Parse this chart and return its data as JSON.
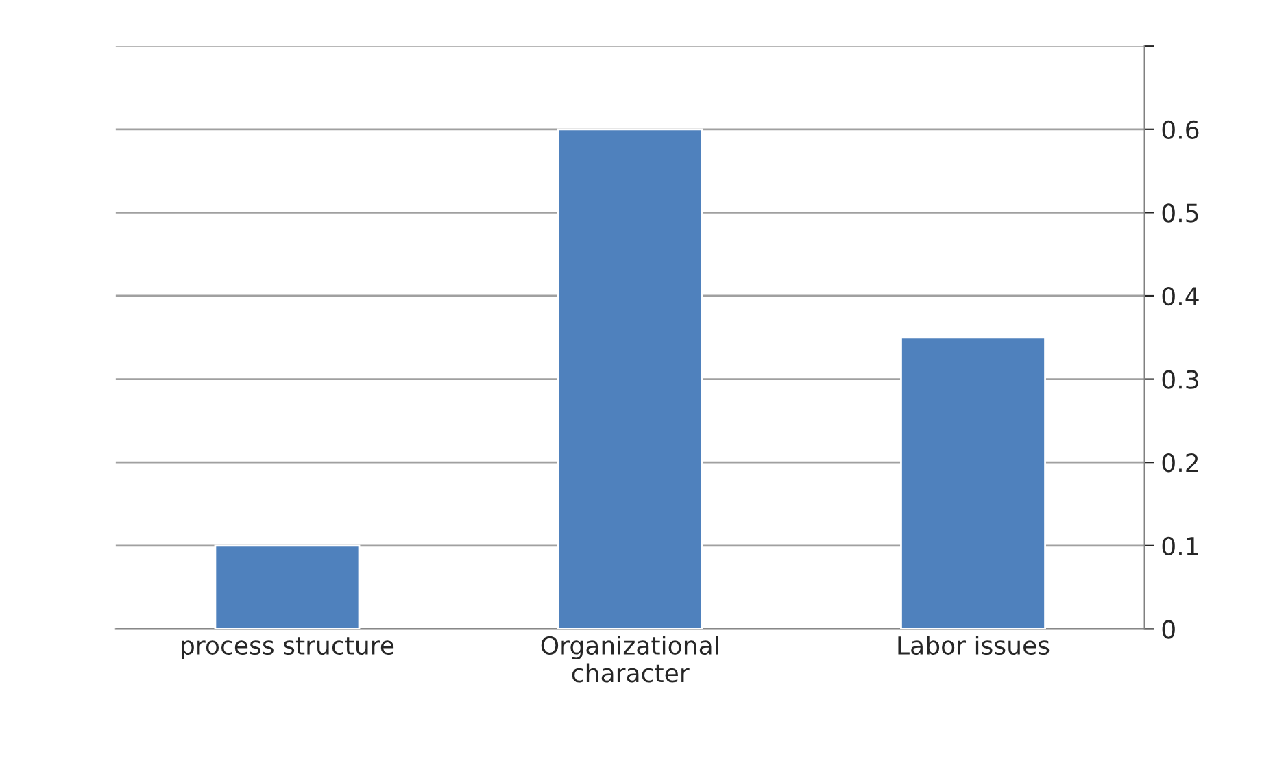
{
  "chart_data": {
    "type": "bar",
    "categories": [
      "process structure",
      "Organizational\ncharacter",
      "Labor issues"
    ],
    "values": [
      0.1,
      0.6,
      0.35
    ],
    "color": "#4f81bd",
    "ylim": [
      0,
      0.7
    ],
    "yticks": [
      0,
      0.1,
      0.2,
      0.3,
      0.4,
      0.5,
      0.6,
      {
        "value": 0.7,
        "label": null
      }
    ],
    "grid": "y"
  }
}
